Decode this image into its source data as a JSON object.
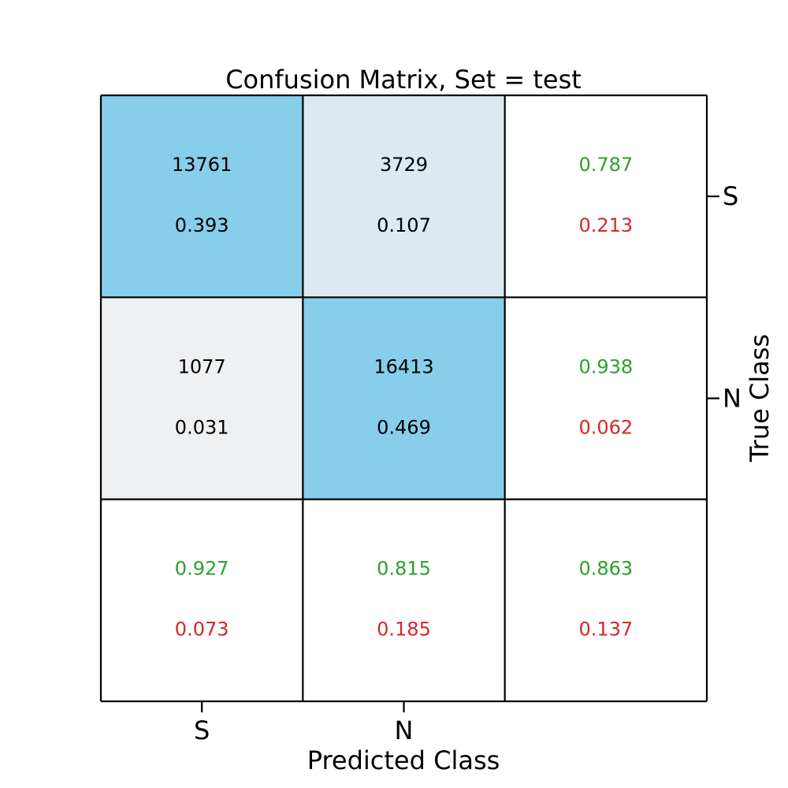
{
  "chart_data": {
    "type": "heatmap",
    "title": "Confusion Matrix, Set = test",
    "xlabel": "Predicted Class",
    "ylabel": "True Class",
    "classes": [
      "S",
      "N"
    ],
    "matrix": {
      "counts": [
        [
          13761,
          3729
        ],
        [
          1077,
          16413
        ]
      ],
      "fractions": [
        [
          "0.393",
          "0.107"
        ],
        [
          "0.031",
          "0.469"
        ]
      ]
    },
    "row_summary": [
      {
        "correct": "0.787",
        "incorrect": "0.213"
      },
      {
        "correct": "0.938",
        "incorrect": "0.062"
      }
    ],
    "column_summary": [
      {
        "correct": "0.927",
        "incorrect": "0.073"
      },
      {
        "correct": "0.815",
        "incorrect": "0.185"
      }
    ],
    "overall": {
      "correct": "0.863",
      "incorrect": "0.137"
    },
    "colors": {
      "diagonal": "#87CEEB",
      "off_diagonal_high": "#DCE9F0",
      "off_diagonal_low": "#EEF0F2",
      "summary_bg": "#FFFFFF",
      "correct_text": "#2CA02C",
      "incorrect_text": "#D62728",
      "text": "#000000",
      "grid": "#000000"
    }
  }
}
